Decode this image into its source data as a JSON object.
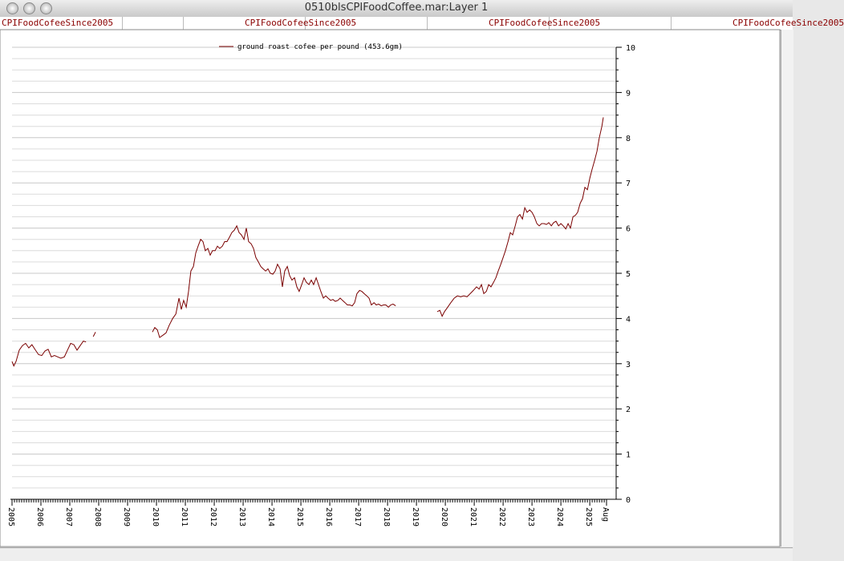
{
  "window": {
    "title": "0510blsCPIFoodCoffee.mar:Layer 1"
  },
  "header_cells": [
    "CPIFoodCofeeSince2005",
    "CPIFoodCofeeSince2005",
    "CPIFoodCofeeSince2005",
    "CPIFoodCofeeSince2005"
  ],
  "chart_data": {
    "type": "line",
    "x": [
      2005.0,
      2005.06,
      2005.14,
      2005.25,
      2005.36,
      2005.47,
      2005.58,
      2005.69,
      2005.81,
      2005.92,
      2006.03,
      2006.14,
      2006.25,
      2006.36,
      2006.47,
      2006.58,
      2006.69,
      2006.81,
      2006.92,
      2007.03,
      2007.14,
      2007.25,
      2007.36,
      2007.47,
      2007.56,
      2007.69,
      2007.81,
      2007.89,
      2008.9,
      2009.86,
      2009.94,
      2010.03,
      2010.11,
      2010.22,
      2010.33,
      2010.44,
      2010.56,
      2010.67,
      2010.78,
      2010.86,
      2010.94,
      2011.03,
      2011.11,
      2011.19,
      2011.28,
      2011.36,
      2011.44,
      2011.53,
      2011.61,
      2011.69,
      2011.78,
      2011.86,
      2011.94,
      2012.03,
      2012.11,
      2012.19,
      2012.28,
      2012.36,
      2012.44,
      2012.53,
      2012.61,
      2012.69,
      2012.78,
      2012.86,
      2012.94,
      2013.03,
      2013.11,
      2013.19,
      2013.28,
      2013.36,
      2013.44,
      2013.53,
      2013.61,
      2013.69,
      2013.78,
      2013.86,
      2013.94,
      2014.03,
      2014.11,
      2014.19,
      2014.28,
      2014.36,
      2014.44,
      2014.53,
      2014.61,
      2014.69,
      2014.78,
      2014.86,
      2014.94,
      2015.03,
      2015.11,
      2015.19,
      2015.28,
      2015.36,
      2015.44,
      2015.53,
      2015.61,
      2015.69,
      2015.78,
      2015.86,
      2015.94,
      2016.03,
      2016.11,
      2016.19,
      2016.28,
      2016.36,
      2016.44,
      2016.53,
      2016.61,
      2016.69,
      2016.78,
      2016.86,
      2016.94,
      2017.03,
      2017.11,
      2017.19,
      2017.28,
      2017.36,
      2017.44,
      2017.53,
      2017.61,
      2017.69,
      2017.78,
      2017.86,
      2017.94,
      2018.03,
      2018.11,
      2018.19,
      2018.28,
      2019.0,
      2019.72,
      2019.81,
      2019.89,
      2019.97,
      2020.08,
      2020.19,
      2020.31,
      2020.42,
      2020.53,
      2020.64,
      2020.75,
      2020.86,
      2020.97,
      2021.08,
      2021.17,
      2021.25,
      2021.33,
      2021.42,
      2021.5,
      2021.58,
      2021.67,
      2021.75,
      2021.83,
      2021.92,
      2022.0,
      2022.08,
      2022.17,
      2022.25,
      2022.33,
      2022.42,
      2022.5,
      2022.58,
      2022.67,
      2022.75,
      2022.83,
      2022.92,
      2023.0,
      2023.08,
      2023.17,
      2023.25,
      2023.33,
      2023.42,
      2023.5,
      2023.58,
      2023.67,
      2023.75,
      2023.83,
      2023.92,
      2024.0,
      2024.08,
      2024.17,
      2024.25,
      2024.33,
      2024.42,
      2024.5,
      2024.58,
      2024.67,
      2024.75,
      2024.83,
      2024.92,
      2025.0,
      2025.08,
      2025.17,
      2025.25,
      2025.33,
      2025.42,
      2025.47
    ],
    "series": [
      {
        "name": "ground roast cofee per pound (453.6gm)",
        "color": "#7a0000",
        "values": [
          3.05,
          2.95,
          3.05,
          3.3,
          3.4,
          3.45,
          3.35,
          3.42,
          3.3,
          3.2,
          3.18,
          3.28,
          3.32,
          3.15,
          3.18,
          3.15,
          3.12,
          3.15,
          3.3,
          3.45,
          3.42,
          3.3,
          3.4,
          3.5,
          3.48,
          null,
          3.6,
          3.7,
          null,
          3.7,
          3.8,
          3.75,
          3.58,
          3.63,
          3.68,
          3.85,
          4.0,
          4.1,
          4.45,
          4.2,
          4.4,
          4.25,
          4.6,
          5.05,
          5.15,
          5.45,
          5.6,
          5.75,
          5.7,
          5.5,
          5.55,
          5.4,
          5.5,
          5.5,
          5.6,
          5.55,
          5.6,
          5.7,
          5.7,
          5.8,
          5.9,
          5.95,
          6.05,
          5.9,
          5.85,
          5.75,
          6.0,
          5.7,
          5.65,
          5.55,
          5.35,
          5.25,
          5.15,
          5.1,
          5.05,
          5.1,
          5.0,
          4.98,
          5.05,
          5.2,
          5.1,
          4.7,
          5.05,
          5.15,
          4.95,
          4.85,
          4.9,
          4.7,
          4.6,
          4.75,
          4.9,
          4.8,
          4.75,
          4.85,
          4.75,
          4.9,
          4.75,
          4.6,
          4.45,
          4.5,
          4.45,
          4.4,
          4.42,
          4.38,
          4.4,
          4.45,
          4.4,
          4.35,
          4.3,
          4.3,
          4.28,
          4.35,
          4.55,
          4.62,
          4.6,
          4.55,
          4.5,
          4.45,
          4.3,
          4.35,
          4.3,
          4.32,
          4.28,
          4.3,
          4.3,
          4.25,
          4.3,
          4.32,
          4.28,
          null,
          4.15,
          4.18,
          4.05,
          4.15,
          4.25,
          4.35,
          4.45,
          4.5,
          4.48,
          4.5,
          4.48,
          4.55,
          4.62,
          4.7,
          4.65,
          4.75,
          4.55,
          4.6,
          4.75,
          4.7,
          4.8,
          4.9,
          5.05,
          5.2,
          5.35,
          5.5,
          5.7,
          5.9,
          5.85,
          6.05,
          6.25,
          6.3,
          6.2,
          6.45,
          6.35,
          6.4,
          6.35,
          6.25,
          6.1,
          6.05,
          6.1,
          6.1,
          6.08,
          6.12,
          6.05,
          6.12,
          6.15,
          6.05,
          6.1,
          6.05,
          5.98,
          6.1,
          6.0,
          6.25,
          6.28,
          6.35,
          6.55,
          6.65,
          6.9,
          6.85,
          7.1,
          7.3,
          7.5,
          7.7,
          8.0,
          8.25,
          8.45
        ]
      }
    ],
    "xlim": [
      2005,
      2025.58
    ],
    "xticks": [
      2005,
      2006,
      2007,
      2008,
      2009,
      2010,
      2011,
      2012,
      2013,
      2014,
      2015,
      2016,
      2017,
      2018,
      2019,
      2020,
      2021,
      2022,
      2023,
      2024,
      2025,
      {
        "value": 2025.58,
        "label": "Aug"
      }
    ],
    "ylim": [
      0,
      10
    ],
    "yticks": [
      0,
      1,
      2,
      3,
      4,
      5,
      6,
      7,
      8,
      9,
      10
    ],
    "grid": true,
    "legend": "top"
  }
}
